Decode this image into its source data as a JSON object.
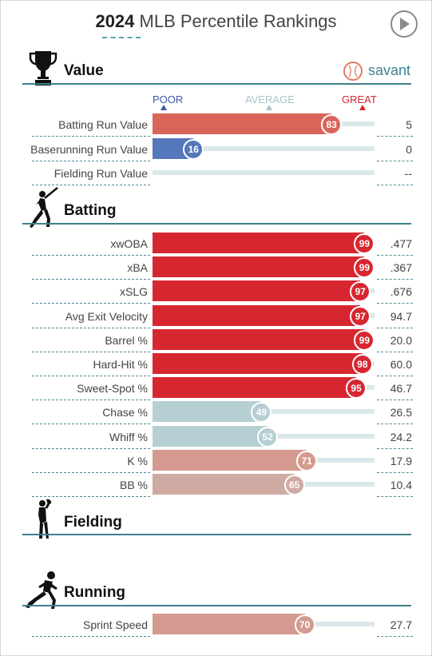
{
  "header": {
    "year": "2024",
    "title": "MLB Percentile Rankings"
  },
  "brand": {
    "logo_text": "savant"
  },
  "scale": {
    "poor": "POOR",
    "average": "AVERAGE",
    "great": "GREAT"
  },
  "colors": {
    "teal": "#3f7f8c",
    "poor_blue": "#3f5aa8",
    "great_red": "#d62731"
  },
  "sections": {
    "value": {
      "title": "Value",
      "icon": "trophy-icon"
    },
    "batting": {
      "title": "Batting",
      "icon": "batter-icon"
    },
    "fielding": {
      "title": "Fielding",
      "icon": "fielder-icon"
    },
    "running": {
      "title": "Running",
      "icon": "runner-icon"
    }
  },
  "value_rows": [
    {
      "label": "Batting Run Value",
      "percentile": "83",
      "value": "5",
      "color": "#d9655a"
    },
    {
      "label": "Baserunning Run Value",
      "percentile": "16",
      "value": "0",
      "color": "#5577bb"
    },
    {
      "label": "Fielding Run Value",
      "percentile": "",
      "value": "--",
      "color": ""
    }
  ],
  "batting_rows": [
    {
      "label": "xwOBA",
      "percentile": "99",
      "value": ".477",
      "color": "#d62731"
    },
    {
      "label": "xBA",
      "percentile": "99",
      "value": ".367",
      "color": "#d62731"
    },
    {
      "label": "xSLG",
      "percentile": "97",
      "value": ".676",
      "color": "#d62731"
    },
    {
      "label": "Avg Exit Velocity",
      "percentile": "97",
      "value": "94.7",
      "color": "#d62731"
    },
    {
      "label": "Barrel %",
      "percentile": "99",
      "value": "20.0",
      "color": "#d62731"
    },
    {
      "label": "Hard-Hit %",
      "percentile": "98",
      "value": "60.0",
      "color": "#d62731"
    },
    {
      "label": "Sweet-Spot %",
      "percentile": "95",
      "value": "46.7",
      "color": "#d62731"
    },
    {
      "label": "Chase %",
      "percentile": "49",
      "value": "26.5",
      "color": "#b6cfd3"
    },
    {
      "label": "Whiff %",
      "percentile": "52",
      "value": "24.2",
      "color": "#b6cfd3"
    },
    {
      "label": "K %",
      "percentile": "71",
      "value": "17.9",
      "color": "#d59a8f"
    },
    {
      "label": "BB %",
      "percentile": "65",
      "value": "10.4",
      "color": "#cfaaa3"
    }
  ],
  "running_rows": [
    {
      "label": "Sprint Speed",
      "percentile": "70",
      "value": "27.7",
      "color": "#d59a8f"
    }
  ]
}
